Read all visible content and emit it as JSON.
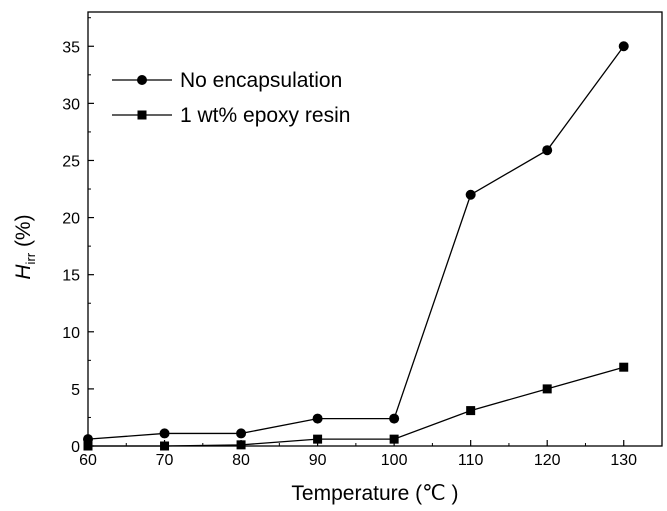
{
  "chart_data": {
    "type": "line",
    "title": "",
    "xlabel": "Temperature (℃ )",
    "ylabel_main": "H",
    "ylabel_sub": "irr",
    "ylabel_suffix": " (%)",
    "x": [
      60,
      70,
      80,
      90,
      100,
      110,
      120,
      130
    ],
    "xlim": [
      60,
      135
    ],
    "ylim": [
      0,
      38
    ],
    "xticks": [
      "60",
      "70",
      "80",
      "90",
      "100",
      "110",
      "120",
      "130"
    ],
    "yticks": [
      "0",
      "5",
      "10",
      "15",
      "20",
      "25",
      "30",
      "35"
    ],
    "grid": false,
    "legend_position": "top-left",
    "series": [
      {
        "name": "No encapsulation",
        "marker": "circle",
        "color": "#000000",
        "values": [
          0.6,
          1.1,
          1.1,
          2.4,
          2.4,
          22.0,
          25.9,
          35.0
        ]
      },
      {
        "name": "1 wt% epoxy resin",
        "marker": "square",
        "color": "#000000",
        "values": [
          0.0,
          0.0,
          0.1,
          0.6,
          0.6,
          3.1,
          5.0,
          6.9
        ]
      }
    ]
  }
}
